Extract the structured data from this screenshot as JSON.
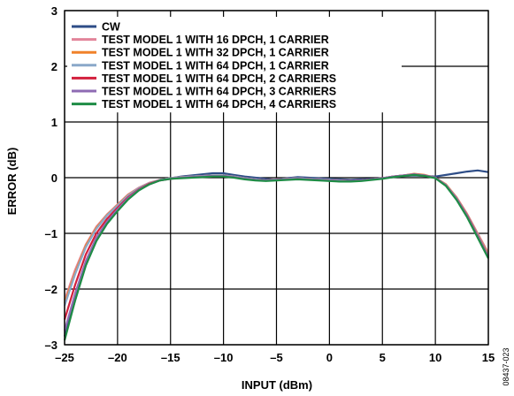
{
  "chart_data": {
    "type": "line",
    "xlabel": "INPUT (dBm)",
    "ylabel": "ERROR (dB)",
    "xlim": [
      -25,
      15
    ],
    "ylim": [
      -3,
      3
    ],
    "x_ticks": [
      -25,
      -20,
      -15,
      -10,
      -5,
      0,
      5,
      10,
      15
    ],
    "y_ticks": [
      -3,
      -2,
      -1,
      0,
      1,
      2,
      3
    ],
    "x_tick_labels": [
      "–25",
      "–20",
      "–15",
      "–10",
      "–5",
      "0",
      "5",
      "10",
      "15"
    ],
    "y_tick_labels": [
      "–3",
      "–2",
      "–1",
      "0",
      "1",
      "2",
      "3"
    ],
    "grid": true,
    "legend_position": "top-left",
    "figure_id": "08437-023",
    "series": [
      {
        "name": "CW",
        "color": "#2e4d87",
        "x": [
          -25,
          -24,
          -23,
          -22,
          -21,
          -20,
          -19,
          -18,
          -17,
          -16,
          -15,
          -14,
          -13,
          -12,
          -11,
          -10,
          -9,
          -8,
          -7,
          -6,
          -5,
          -4,
          -3,
          -2,
          -1,
          0,
          1,
          2,
          3,
          4,
          5,
          6,
          7,
          8,
          9,
          10,
          11,
          12,
          13,
          14,
          15
        ],
        "y": [
          -2.85,
          -2.2,
          -1.55,
          -1.12,
          -0.82,
          -0.55,
          -0.35,
          -0.2,
          -0.1,
          -0.04,
          -0.01,
          0.02,
          0.04,
          0.06,
          0.08,
          0.08,
          0.05,
          0.02,
          0.0,
          -0.02,
          -0.04,
          -0.01,
          0.01,
          0.0,
          -0.01,
          -0.02,
          -0.03,
          -0.04,
          -0.03,
          -0.02,
          -0.01,
          0.01,
          0.03,
          0.04,
          0.03,
          0.02,
          0.05,
          0.08,
          0.11,
          0.13,
          0.1
        ]
      },
      {
        "name": "TEST MODEL 1 WITH 16 DPCH, 1 CARRIER",
        "color": "#e2849a",
        "x": [
          -25,
          -24,
          -23,
          -22,
          -21,
          -20,
          -19,
          -18,
          -17,
          -16,
          -15,
          -14,
          -13,
          -12,
          -11,
          -10,
          -9,
          -8,
          -7,
          -6,
          -5,
          -4,
          -3,
          -2,
          -1,
          0,
          1,
          2,
          3,
          4,
          5,
          6,
          7,
          8,
          9,
          10,
          11,
          12,
          13,
          14,
          15
        ],
        "y": [
          -2.2,
          -1.65,
          -1.2,
          -0.88,
          -0.66,
          -0.48,
          -0.3,
          -0.18,
          -0.09,
          -0.04,
          -0.01,
          0.01,
          0.02,
          0.03,
          0.04,
          0.04,
          0.02,
          -0.01,
          -0.03,
          -0.05,
          -0.03,
          -0.02,
          -0.01,
          -0.02,
          -0.03,
          -0.04,
          -0.05,
          -0.06,
          -0.05,
          -0.03,
          -0.01,
          0.02,
          0.04,
          0.06,
          0.04,
          0.0,
          -0.12,
          -0.35,
          -0.65,
          -1.0,
          -1.35
        ]
      },
      {
        "name": "TEST MODEL 1 WITH 32 DPCH, 1 CARRIER",
        "color": "#f0822a",
        "x": [
          -25,
          -24,
          -23,
          -22,
          -21,
          -20,
          -19,
          -18,
          -17,
          -16,
          -15,
          -14,
          -13,
          -12,
          -11,
          -10,
          -9,
          -8,
          -7,
          -6,
          -5,
          -4,
          -3,
          -2,
          -1,
          0,
          1,
          2,
          3,
          4,
          5,
          6,
          7,
          8,
          9,
          10,
          11,
          12,
          13,
          14,
          15
        ],
        "y": [
          -2.25,
          -1.7,
          -1.22,
          -0.9,
          -0.67,
          -0.49,
          -0.31,
          -0.19,
          -0.1,
          -0.04,
          -0.01,
          0.01,
          0.02,
          0.03,
          0.04,
          0.04,
          0.02,
          -0.01,
          -0.03,
          -0.05,
          -0.03,
          -0.02,
          -0.01,
          -0.02,
          -0.03,
          -0.04,
          -0.05,
          -0.06,
          -0.05,
          -0.03,
          -0.01,
          0.02,
          0.04,
          0.07,
          0.05,
          0.0,
          -0.12,
          -0.36,
          -0.66,
          -1.02,
          -1.38
        ]
      },
      {
        "name": "TEST MODEL 1 WITH 64 DPCH, 1 CARRIER",
        "color": "#8aa8c9",
        "x": [
          -25,
          -24,
          -23,
          -22,
          -21,
          -20,
          -19,
          -18,
          -17,
          -16,
          -15,
          -14,
          -13,
          -12,
          -11,
          -10,
          -9,
          -8,
          -7,
          -6,
          -5,
          -4,
          -3,
          -2,
          -1,
          0,
          1,
          2,
          3,
          4,
          5,
          6,
          7,
          8,
          9,
          10,
          11,
          12,
          13,
          14,
          15
        ],
        "y": [
          -2.3,
          -1.73,
          -1.25,
          -0.92,
          -0.68,
          -0.5,
          -0.32,
          -0.19,
          -0.1,
          -0.04,
          -0.01,
          0.01,
          0.02,
          0.03,
          0.04,
          0.04,
          0.02,
          -0.01,
          -0.03,
          -0.05,
          -0.03,
          -0.02,
          -0.01,
          -0.02,
          -0.03,
          -0.04,
          -0.05,
          -0.06,
          -0.05,
          -0.03,
          -0.01,
          0.02,
          0.04,
          0.06,
          0.04,
          0.0,
          -0.13,
          -0.37,
          -0.67,
          -1.03,
          -1.4
        ]
      },
      {
        "name": "TEST MODEL 1 WITH 64 DPCH, 2 CARRIERS",
        "color": "#d31f3c",
        "x": [
          -25,
          -24,
          -23,
          -22,
          -21,
          -20,
          -19,
          -18,
          -17,
          -16,
          -15,
          -14,
          -13,
          -12,
          -11,
          -10,
          -9,
          -8,
          -7,
          -6,
          -5,
          -4,
          -3,
          -2,
          -1,
          0,
          1,
          2,
          3,
          4,
          5,
          6,
          7,
          8,
          9,
          10,
          11,
          12,
          13,
          14,
          15
        ],
        "y": [
          -2.55,
          -1.92,
          -1.38,
          -1.0,
          -0.74,
          -0.54,
          -0.35,
          -0.21,
          -0.11,
          -0.05,
          -0.02,
          0.0,
          0.01,
          0.02,
          0.03,
          0.03,
          0.01,
          -0.02,
          -0.04,
          -0.05,
          -0.04,
          -0.03,
          -0.02,
          -0.03,
          -0.04,
          -0.05,
          -0.06,
          -0.06,
          -0.05,
          -0.03,
          -0.01,
          0.02,
          0.04,
          0.06,
          0.04,
          0.0,
          -0.14,
          -0.38,
          -0.68,
          -1.05,
          -1.42
        ]
      },
      {
        "name": "TEST MODEL 1 WITH 64 DPCH, 3 CARRIERS",
        "color": "#8e6bb3",
        "x": [
          -25,
          -24,
          -23,
          -22,
          -21,
          -20,
          -19,
          -18,
          -17,
          -16,
          -15,
          -14,
          -13,
          -12,
          -11,
          -10,
          -9,
          -8,
          -7,
          -6,
          -5,
          -4,
          -3,
          -2,
          -1,
          0,
          1,
          2,
          3,
          4,
          5,
          6,
          7,
          8,
          9,
          10,
          11,
          12,
          13,
          14,
          15
        ],
        "y": [
          -2.75,
          -2.08,
          -1.5,
          -1.08,
          -0.79,
          -0.57,
          -0.37,
          -0.22,
          -0.12,
          -0.05,
          -0.02,
          0.0,
          0.01,
          0.02,
          0.03,
          0.03,
          0.01,
          -0.02,
          -0.04,
          -0.05,
          -0.04,
          -0.03,
          -0.02,
          -0.03,
          -0.04,
          -0.05,
          -0.06,
          -0.06,
          -0.05,
          -0.03,
          -0.01,
          0.02,
          0.04,
          0.06,
          0.04,
          0.0,
          -0.14,
          -0.38,
          -0.69,
          -1.06,
          -1.43
        ]
      },
      {
        "name": "TEST MODEL 1 WITH 64 DPCH, 4 CARRIERS",
        "color": "#1e8c45",
        "x": [
          -25,
          -24,
          -23,
          -22,
          -21,
          -20,
          -19,
          -18,
          -17,
          -16,
          -15,
          -14,
          -13,
          -12,
          -11,
          -10,
          -9,
          -8,
          -7,
          -6,
          -5,
          -4,
          -3,
          -2,
          -1,
          0,
          1,
          2,
          3,
          4,
          5,
          6,
          7,
          8,
          9,
          10,
          11,
          12,
          13,
          14,
          15
        ],
        "y": [
          -2.92,
          -2.2,
          -1.58,
          -1.14,
          -0.83,
          -0.6,
          -0.39,
          -0.23,
          -0.12,
          -0.05,
          -0.02,
          -0.01,
          0.0,
          0.01,
          0.02,
          0.02,
          0.0,
          -0.03,
          -0.05,
          -0.06,
          -0.05,
          -0.04,
          -0.03,
          -0.04,
          -0.05,
          -0.06,
          -0.07,
          -0.07,
          -0.06,
          -0.04,
          -0.02,
          0.01,
          0.03,
          0.05,
          0.03,
          -0.01,
          -0.15,
          -0.4,
          -0.71,
          -1.08,
          -1.45
        ]
      }
    ]
  }
}
